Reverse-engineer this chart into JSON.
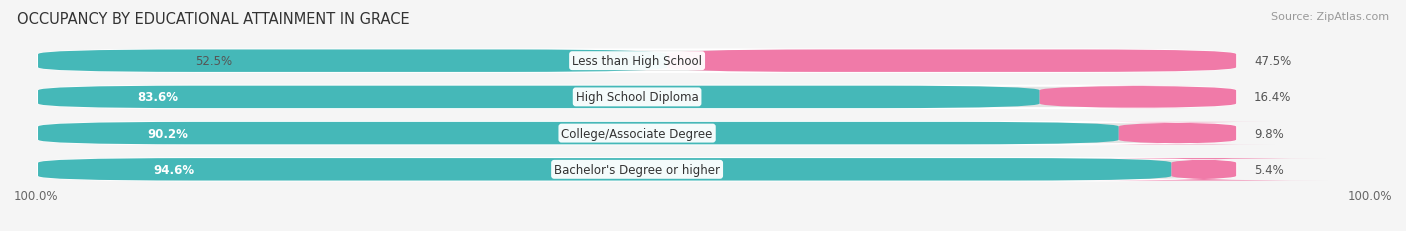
{
  "title": "OCCUPANCY BY EDUCATIONAL ATTAINMENT IN GRACE",
  "source": "Source: ZipAtlas.com",
  "categories": [
    "Less than High School",
    "High School Diploma",
    "College/Associate Degree",
    "Bachelor's Degree or higher"
  ],
  "owner_pct": [
    52.5,
    83.6,
    90.2,
    94.6
  ],
  "renter_pct": [
    47.5,
    16.4,
    9.8,
    5.4
  ],
  "owner_color": "#45b8b8",
  "renter_color": "#f07aa8",
  "bg_color": "#f5f5f5",
  "bar_bg_color": "#e4e4e4",
  "bar_height": 0.62,
  "bottom_left_label": "100.0%",
  "bottom_right_label": "100.0%",
  "title_fontsize": 10.5,
  "source_fontsize": 8,
  "pct_label_fontsize": 8.5,
  "cat_fontsize": 8.5,
  "legend_fontsize": 8.5,
  "figwidth": 14.06,
  "figheight": 2.32,
  "dpi": 100
}
